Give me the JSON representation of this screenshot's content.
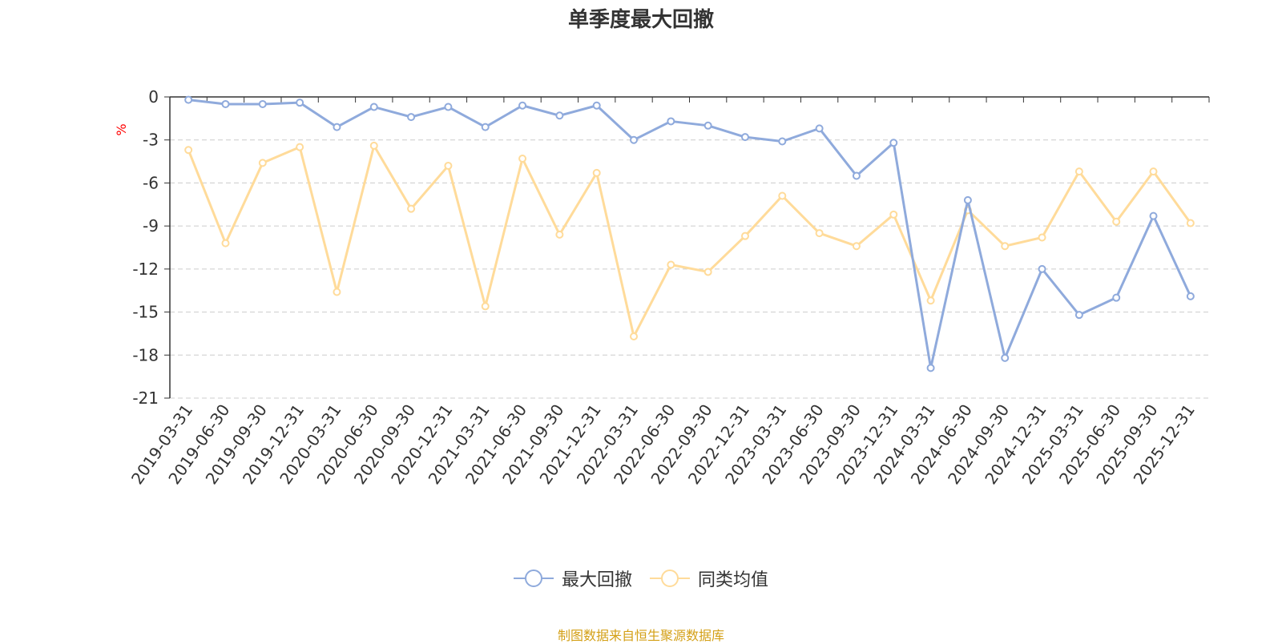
{
  "chart_data": {
    "type": "line",
    "title": "单季度最大回撤",
    "xlabel": "",
    "ylabel": "%",
    "ylim": [
      -21,
      0
    ],
    "yticks": [
      0,
      -3,
      -6,
      -9,
      -12,
      -15,
      -18,
      -21
    ],
    "categories": [
      "2019-03-31",
      "2019-06-30",
      "2019-09-30",
      "2019-12-31",
      "2020-03-31",
      "2020-06-30",
      "2020-09-30",
      "2020-12-31",
      "2021-03-31",
      "2021-06-30",
      "2021-09-30",
      "2021-12-31",
      "2022-03-31",
      "2022-06-30",
      "2022-09-30",
      "2022-12-31",
      "2023-03-31",
      "2023-06-30",
      "2023-09-30",
      "2023-12-31",
      "2024-03-31",
      "2024-06-30",
      "2024-09-30",
      "2024-12-31",
      "2025-03-31",
      "2025-06-30",
      "2025-09-30",
      "2025-12-31"
    ],
    "series": [
      {
        "name": "最大回撤",
        "color": "#8FAADC",
        "values": [
          -0.2,
          -0.5,
          -0.5,
          -0.4,
          -2.1,
          -0.7,
          -1.4,
          -0.7,
          -2.1,
          -0.6,
          -1.3,
          -0.6,
          -3.0,
          -1.7,
          -2.0,
          -2.8,
          -3.1,
          -2.2,
          -5.5,
          -3.2,
          -18.9,
          -7.2,
          -18.2,
          -12.0,
          -15.2,
          -14.0,
          -8.3,
          -13.9
        ]
      },
      {
        "name": "同类均值",
        "color": "#FFDB9A",
        "values": [
          -3.7,
          -10.2,
          -4.6,
          -3.5,
          -13.6,
          -3.4,
          -7.8,
          -4.8,
          -14.6,
          -4.3,
          -9.6,
          -5.3,
          -16.7,
          -11.7,
          -12.2,
          -9.7,
          -6.9,
          -9.5,
          -10.4,
          -8.2,
          -14.2,
          -7.9,
          -10.4,
          -9.8,
          -5.2,
          -8.7,
          -5.2,
          -8.8
        ]
      }
    ]
  },
  "source_text": "制图数据来自恒生聚源数据库",
  "colors": {
    "axis": "#333333",
    "grid": "#cccccc",
    "ylabel": "#ff0000",
    "source": "#d4a017"
  }
}
